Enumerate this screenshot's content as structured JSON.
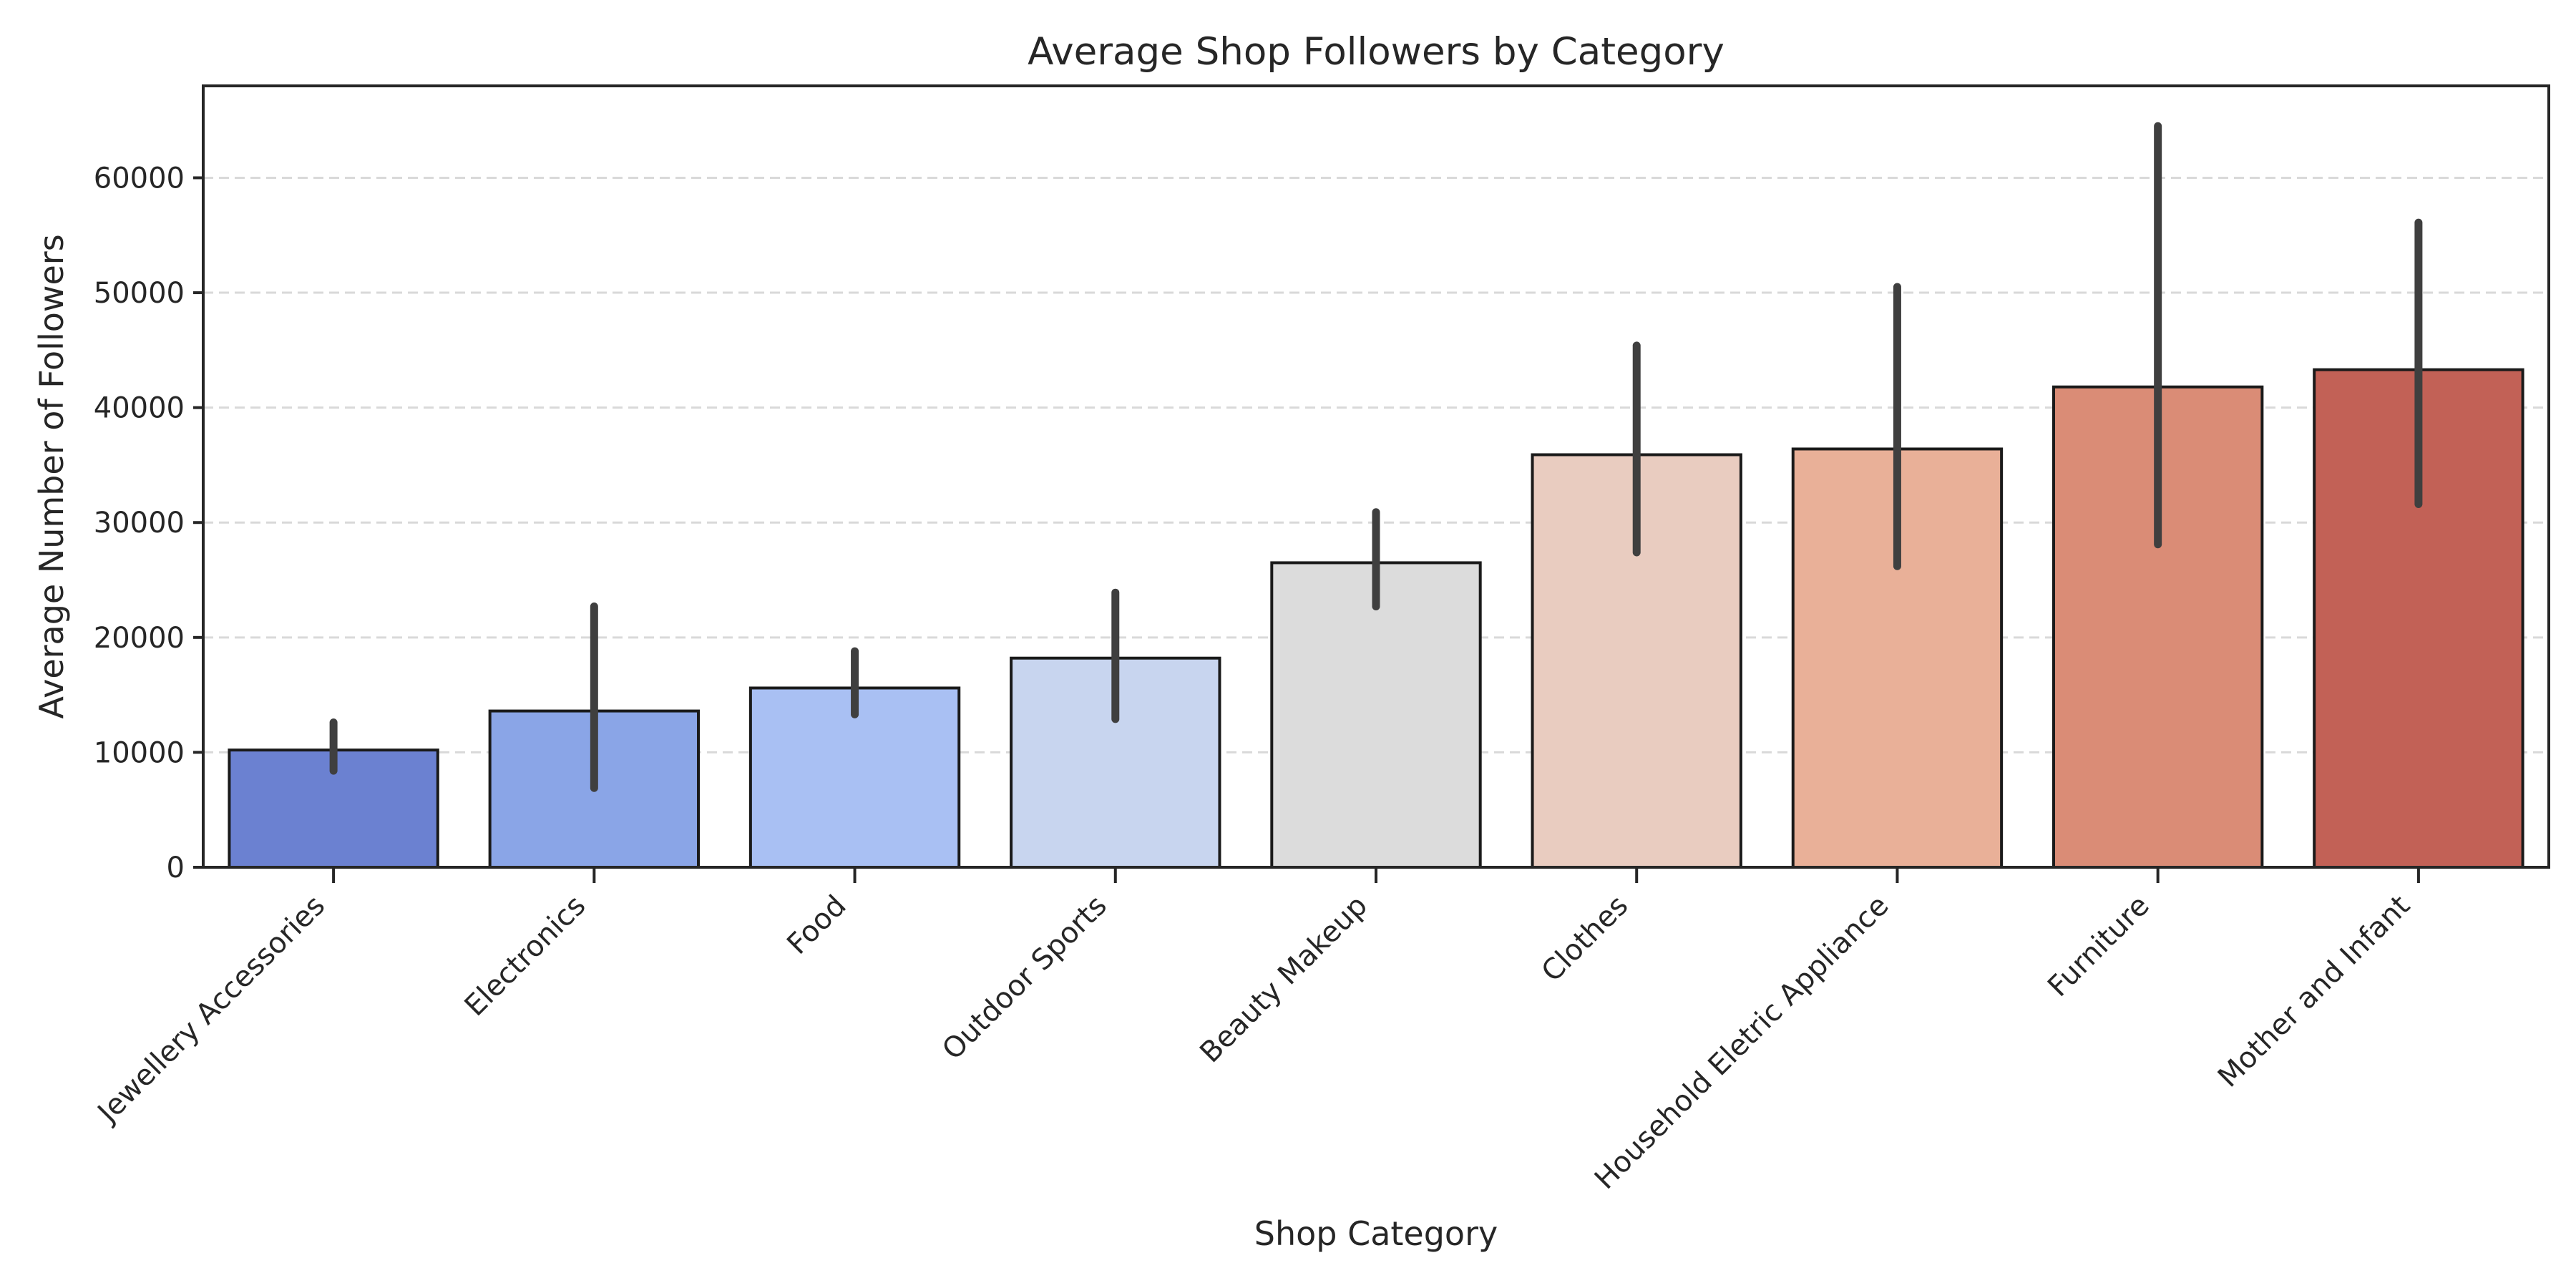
{
  "chart_data": {
    "type": "bar",
    "title": "Average Shop Followers by Category",
    "xlabel": "Shop Category",
    "ylabel": "Average Number of Followers",
    "ylim": [
      0,
      68000
    ],
    "yticks": [
      0,
      10000,
      20000,
      30000,
      40000,
      50000,
      60000
    ],
    "ytick_labels": [
      "0",
      "10000",
      "20000",
      "30000",
      "40000",
      "50000",
      "60000"
    ],
    "grid": "y-dashed",
    "categories": [
      "Jewellery Accessories",
      "Electronics",
      "Food",
      "Outdoor Sports",
      "Beauty Makeup",
      "Clothes",
      "Household Eletric Appliance",
      "Furniture",
      "Mother and Infant"
    ],
    "values": [
      10200,
      13600,
      15600,
      18200,
      26500,
      35900,
      36400,
      41800,
      43300
    ],
    "error_low": [
      8400,
      6900,
      13300,
      12900,
      22700,
      27400,
      26200,
      28100,
      31600
    ],
    "error_high": [
      12600,
      22700,
      18800,
      23900,
      30900,
      45400,
      50500,
      64500,
      56100
    ],
    "colors": [
      "#6b81d1",
      "#8aa5e7",
      "#a9c0f3",
      "#c8d5ef",
      "#dcdcdc",
      "#e9ccc0",
      "#e9b098",
      "#da8c76",
      "#c26156"
    ]
  }
}
